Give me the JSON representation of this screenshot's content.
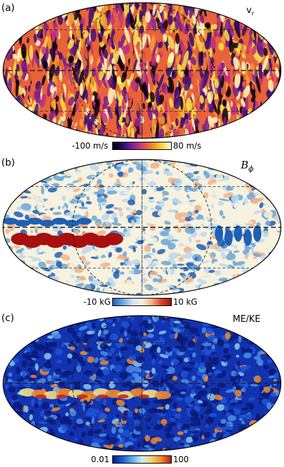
{
  "panels": [
    {
      "label": "(a)",
      "field": "v",
      "field_sub": "r",
      "colorbar": {
        "min_label": "-100 m/s",
        "max_label": "80 m/s",
        "colors": [
          "#000000",
          "#2a0a6b",
          "#7b1fa2",
          "#d0416a",
          "#f5821f",
          "#ffd43b",
          "#ffffe0"
        ]
      },
      "palette": [
        "#0a0010",
        "#3b0f70",
        "#7a1e8c",
        "#c0307a",
        "#e8623a",
        "#f8a02a",
        "#fde24a",
        "#fff8c0"
      ]
    },
    {
      "label": "(b)",
      "field": "B",
      "field_sub": "ϕ",
      "colorbar": {
        "min_label": "-10 kG",
        "max_label": "10 kG",
        "colors": [
          "#1f5fb4",
          "#6aa6d8",
          "#cfe3f2",
          "#fbf3dc",
          "#f2b28a",
          "#d8432a",
          "#a80f0f"
        ]
      },
      "palette": [
        "#1f5fb4",
        "#6aa6d8",
        "#bcd8ee",
        "#f7f2df",
        "#fbefd6",
        "#f2b28a",
        "#d8432a",
        "#a80f0f"
      ]
    },
    {
      "label": "(c)",
      "field": "ME/KE",
      "field_sub": "",
      "colorbar": {
        "min_label": "0.01",
        "max_label": "100",
        "colors": [
          "#0b1d8a",
          "#1e5bd8",
          "#5fb0e8",
          "#cfe9f5",
          "#f5d36a",
          "#f08a2a",
          "#b51f12"
        ]
      },
      "palette": [
        "#0a1a7a",
        "#1233b0",
        "#1e55d6",
        "#4a8fe4",
        "#8cc7ea",
        "#f0e08a",
        "#f08a2a",
        "#c8261a"
      ]
    }
  ]
}
